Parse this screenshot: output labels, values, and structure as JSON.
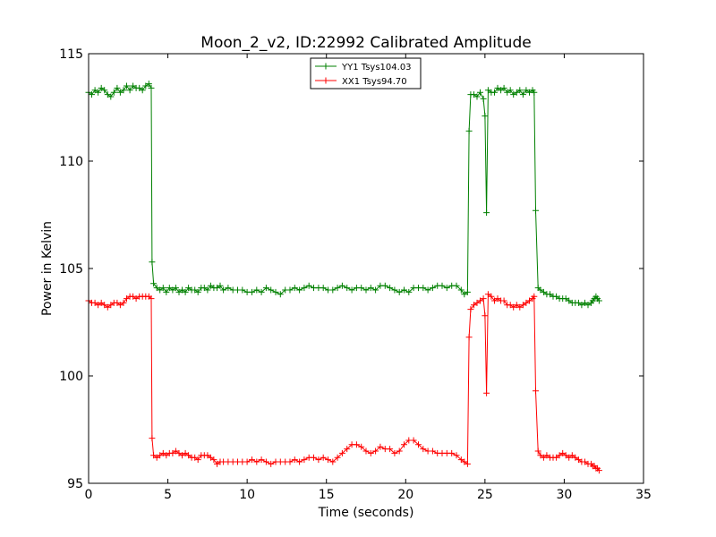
{
  "chart_data": {
    "type": "line",
    "title": "Moon_2_v2, ID:22992 Calibrated Amplitude",
    "xlabel": "Time (seconds)",
    "ylabel": "Power in Kelvin",
    "xlim": [
      0,
      35
    ],
    "ylim": [
      95,
      115
    ],
    "xticks": [
      0,
      5,
      10,
      15,
      20,
      25,
      30,
      35
    ],
    "yticks": [
      95,
      100,
      105,
      110,
      115
    ],
    "grid": false,
    "legend_position": "upper-center",
    "marker": "+",
    "series": [
      {
        "name": "YY1 Tsys104.03",
        "color": "#008000",
        "points": [
          [
            0.0,
            113.2
          ],
          [
            0.2,
            113.1
          ],
          [
            0.4,
            113.3
          ],
          [
            0.6,
            113.2
          ],
          [
            0.8,
            113.4
          ],
          [
            1.0,
            113.3
          ],
          [
            1.2,
            113.1
          ],
          [
            1.4,
            113.0
          ],
          [
            1.6,
            113.2
          ],
          [
            1.8,
            113.4
          ],
          [
            2.0,
            113.2
          ],
          [
            2.2,
            113.3
          ],
          [
            2.4,
            113.5
          ],
          [
            2.6,
            113.3
          ],
          [
            2.8,
            113.5
          ],
          [
            3.0,
            113.4
          ],
          [
            3.2,
            113.4
          ],
          [
            3.4,
            113.3
          ],
          [
            3.6,
            113.5
          ],
          [
            3.8,
            113.6
          ],
          [
            3.95,
            113.4
          ],
          [
            4.0,
            105.3
          ],
          [
            4.1,
            104.3
          ],
          [
            4.3,
            104.1
          ],
          [
            4.5,
            104.0
          ],
          [
            4.7,
            104.1
          ],
          [
            4.9,
            103.9
          ],
          [
            5.1,
            104.1
          ],
          [
            5.3,
            104.0
          ],
          [
            5.5,
            104.1
          ],
          [
            5.7,
            103.9
          ],
          [
            5.9,
            104.0
          ],
          [
            6.1,
            103.9
          ],
          [
            6.3,
            104.1
          ],
          [
            6.5,
            104.0
          ],
          [
            6.7,
            104.0
          ],
          [
            6.9,
            103.9
          ],
          [
            7.1,
            104.1
          ],
          [
            7.3,
            104.1
          ],
          [
            7.5,
            104.0
          ],
          [
            7.7,
            104.2
          ],
          [
            7.9,
            104.1
          ],
          [
            8.1,
            104.1
          ],
          [
            8.3,
            104.2
          ],
          [
            8.5,
            104.0
          ],
          [
            8.8,
            104.1
          ],
          [
            9.1,
            104.0
          ],
          [
            9.4,
            104.0
          ],
          [
            9.7,
            104.0
          ],
          [
            10.0,
            103.9
          ],
          [
            10.3,
            103.9
          ],
          [
            10.6,
            104.0
          ],
          [
            10.9,
            103.9
          ],
          [
            11.2,
            104.1
          ],
          [
            11.5,
            104.0
          ],
          [
            11.8,
            103.9
          ],
          [
            12.1,
            103.8
          ],
          [
            12.4,
            104.0
          ],
          [
            12.7,
            104.0
          ],
          [
            13.0,
            104.1
          ],
          [
            13.3,
            104.0
          ],
          [
            13.6,
            104.1
          ],
          [
            13.9,
            104.2
          ],
          [
            14.2,
            104.1
          ],
          [
            14.5,
            104.1
          ],
          [
            14.8,
            104.1
          ],
          [
            15.1,
            104.0
          ],
          [
            15.4,
            104.0
          ],
          [
            15.7,
            104.1
          ],
          [
            16.0,
            104.2
          ],
          [
            16.3,
            104.1
          ],
          [
            16.6,
            104.0
          ],
          [
            16.9,
            104.1
          ],
          [
            17.2,
            104.1
          ],
          [
            17.5,
            104.0
          ],
          [
            17.8,
            104.1
          ],
          [
            18.1,
            104.0
          ],
          [
            18.4,
            104.2
          ],
          [
            18.7,
            104.2
          ],
          [
            19.0,
            104.1
          ],
          [
            19.3,
            104.0
          ],
          [
            19.6,
            103.9
          ],
          [
            19.9,
            104.0
          ],
          [
            20.2,
            103.9
          ],
          [
            20.5,
            104.1
          ],
          [
            20.8,
            104.1
          ],
          [
            21.1,
            104.1
          ],
          [
            21.4,
            104.0
          ],
          [
            21.7,
            104.1
          ],
          [
            22.0,
            104.2
          ],
          [
            22.3,
            104.2
          ],
          [
            22.6,
            104.1
          ],
          [
            22.9,
            104.2
          ],
          [
            23.2,
            104.2
          ],
          [
            23.5,
            104.0
          ],
          [
            23.7,
            103.8
          ],
          [
            23.9,
            103.9
          ],
          [
            24.0,
            111.4
          ],
          [
            24.1,
            113.1
          ],
          [
            24.3,
            113.1
          ],
          [
            24.5,
            113.0
          ],
          [
            24.7,
            113.2
          ],
          [
            24.9,
            112.9
          ],
          [
            25.0,
            112.1
          ],
          [
            25.1,
            107.6
          ],
          [
            25.2,
            113.3
          ],
          [
            25.4,
            113.2
          ],
          [
            25.6,
            113.2
          ],
          [
            25.8,
            113.4
          ],
          [
            26.0,
            113.3
          ],
          [
            26.2,
            113.4
          ],
          [
            26.4,
            113.2
          ],
          [
            26.6,
            113.3
          ],
          [
            26.8,
            113.1
          ],
          [
            27.0,
            113.2
          ],
          [
            27.2,
            113.3
          ],
          [
            27.4,
            113.1
          ],
          [
            27.6,
            113.3
          ],
          [
            27.8,
            113.2
          ],
          [
            28.0,
            113.3
          ],
          [
            28.1,
            113.2
          ],
          [
            28.2,
            107.7
          ],
          [
            28.35,
            104.1
          ],
          [
            28.5,
            104.0
          ],
          [
            28.7,
            103.9
          ],
          [
            28.9,
            103.8
          ],
          [
            29.1,
            103.8
          ],
          [
            29.3,
            103.7
          ],
          [
            29.5,
            103.7
          ],
          [
            29.7,
            103.6
          ],
          [
            29.9,
            103.6
          ],
          [
            30.1,
            103.6
          ],
          [
            30.3,
            103.5
          ],
          [
            30.5,
            103.4
          ],
          [
            30.7,
            103.4
          ],
          [
            30.9,
            103.4
          ],
          [
            31.1,
            103.3
          ],
          [
            31.3,
            103.4
          ],
          [
            31.5,
            103.3
          ],
          [
            31.7,
            103.4
          ],
          [
            31.8,
            103.5
          ],
          [
            31.9,
            103.6
          ],
          [
            32.0,
            103.7
          ],
          [
            32.1,
            103.6
          ],
          [
            32.2,
            103.5
          ]
        ]
      },
      {
        "name": "XX1 Tsys94.70",
        "color": "#ff0000",
        "points": [
          [
            0.0,
            103.5
          ],
          [
            0.2,
            103.4
          ],
          [
            0.4,
            103.4
          ],
          [
            0.6,
            103.3
          ],
          [
            0.8,
            103.4
          ],
          [
            1.0,
            103.3
          ],
          [
            1.2,
            103.2
          ],
          [
            1.4,
            103.3
          ],
          [
            1.6,
            103.4
          ],
          [
            1.8,
            103.4
          ],
          [
            2.0,
            103.3
          ],
          [
            2.2,
            103.4
          ],
          [
            2.4,
            103.6
          ],
          [
            2.6,
            103.7
          ],
          [
            2.8,
            103.7
          ],
          [
            3.0,
            103.6
          ],
          [
            3.2,
            103.7
          ],
          [
            3.4,
            103.7
          ],
          [
            3.6,
            103.7
          ],
          [
            3.8,
            103.7
          ],
          [
            3.95,
            103.6
          ],
          [
            4.0,
            97.1
          ],
          [
            4.1,
            96.3
          ],
          [
            4.3,
            96.2
          ],
          [
            4.5,
            96.3
          ],
          [
            4.7,
            96.4
          ],
          [
            4.9,
            96.3
          ],
          [
            5.1,
            96.4
          ],
          [
            5.3,
            96.4
          ],
          [
            5.5,
            96.5
          ],
          [
            5.7,
            96.4
          ],
          [
            5.9,
            96.3
          ],
          [
            6.1,
            96.4
          ],
          [
            6.3,
            96.3
          ],
          [
            6.5,
            96.2
          ],
          [
            6.7,
            96.2
          ],
          [
            6.9,
            96.1
          ],
          [
            7.1,
            96.3
          ],
          [
            7.3,
            96.3
          ],
          [
            7.5,
            96.3
          ],
          [
            7.7,
            96.2
          ],
          [
            7.9,
            96.1
          ],
          [
            8.1,
            95.9
          ],
          [
            8.3,
            96.0
          ],
          [
            8.5,
            96.0
          ],
          [
            8.8,
            96.0
          ],
          [
            9.1,
            96.0
          ],
          [
            9.4,
            96.0
          ],
          [
            9.7,
            96.0
          ],
          [
            10.0,
            96.0
          ],
          [
            10.3,
            96.1
          ],
          [
            10.6,
            96.0
          ],
          [
            10.9,
            96.1
          ],
          [
            11.2,
            96.0
          ],
          [
            11.5,
            95.9
          ],
          [
            11.8,
            96.0
          ],
          [
            12.1,
            96.0
          ],
          [
            12.4,
            96.0
          ],
          [
            12.7,
            96.0
          ],
          [
            13.0,
            96.1
          ],
          [
            13.3,
            96.0
          ],
          [
            13.6,
            96.1
          ],
          [
            13.9,
            96.2
          ],
          [
            14.2,
            96.2
          ],
          [
            14.5,
            96.1
          ],
          [
            14.8,
            96.2
          ],
          [
            15.1,
            96.1
          ],
          [
            15.4,
            96.0
          ],
          [
            15.7,
            96.2
          ],
          [
            16.0,
            96.4
          ],
          [
            16.3,
            96.6
          ],
          [
            16.6,
            96.8
          ],
          [
            16.9,
            96.8
          ],
          [
            17.2,
            96.7
          ],
          [
            17.5,
            96.5
          ],
          [
            17.8,
            96.4
          ],
          [
            18.1,
            96.5
          ],
          [
            18.4,
            96.7
          ],
          [
            18.7,
            96.6
          ],
          [
            19.0,
            96.6
          ],
          [
            19.3,
            96.4
          ],
          [
            19.6,
            96.5
          ],
          [
            19.9,
            96.8
          ],
          [
            20.2,
            97.0
          ],
          [
            20.5,
            97.0
          ],
          [
            20.8,
            96.8
          ],
          [
            21.1,
            96.6
          ],
          [
            21.4,
            96.5
          ],
          [
            21.7,
            96.5
          ],
          [
            22.0,
            96.4
          ],
          [
            22.3,
            96.4
          ],
          [
            22.6,
            96.4
          ],
          [
            22.9,
            96.4
          ],
          [
            23.2,
            96.3
          ],
          [
            23.5,
            96.1
          ],
          [
            23.7,
            96.0
          ],
          [
            23.9,
            95.9
          ],
          [
            24.0,
            101.8
          ],
          [
            24.1,
            103.1
          ],
          [
            24.3,
            103.3
          ],
          [
            24.5,
            103.4
          ],
          [
            24.7,
            103.5
          ],
          [
            24.9,
            103.6
          ],
          [
            25.0,
            102.8
          ],
          [
            25.1,
            99.2
          ],
          [
            25.2,
            103.8
          ],
          [
            25.4,
            103.7
          ],
          [
            25.6,
            103.5
          ],
          [
            25.8,
            103.6
          ],
          [
            26.0,
            103.5
          ],
          [
            26.2,
            103.5
          ],
          [
            26.4,
            103.3
          ],
          [
            26.6,
            103.3
          ],
          [
            26.8,
            103.2
          ],
          [
            27.0,
            103.3
          ],
          [
            27.2,
            103.2
          ],
          [
            27.4,
            103.3
          ],
          [
            27.6,
            103.4
          ],
          [
            27.8,
            103.5
          ],
          [
            28.0,
            103.6
          ],
          [
            28.1,
            103.7
          ],
          [
            28.2,
            99.3
          ],
          [
            28.35,
            96.5
          ],
          [
            28.5,
            96.3
          ],
          [
            28.7,
            96.2
          ],
          [
            28.9,
            96.3
          ],
          [
            29.1,
            96.2
          ],
          [
            29.3,
            96.2
          ],
          [
            29.5,
            96.2
          ],
          [
            29.7,
            96.3
          ],
          [
            29.9,
            96.4
          ],
          [
            30.1,
            96.3
          ],
          [
            30.3,
            96.2
          ],
          [
            30.5,
            96.3
          ],
          [
            30.7,
            96.2
          ],
          [
            30.9,
            96.1
          ],
          [
            31.1,
            96.0
          ],
          [
            31.3,
            96.0
          ],
          [
            31.5,
            95.9
          ],
          [
            31.7,
            95.9
          ],
          [
            31.8,
            95.8
          ],
          [
            31.9,
            95.8
          ],
          [
            32.0,
            95.7
          ],
          [
            32.1,
            95.7
          ],
          [
            32.2,
            95.6
          ]
        ]
      }
    ]
  }
}
